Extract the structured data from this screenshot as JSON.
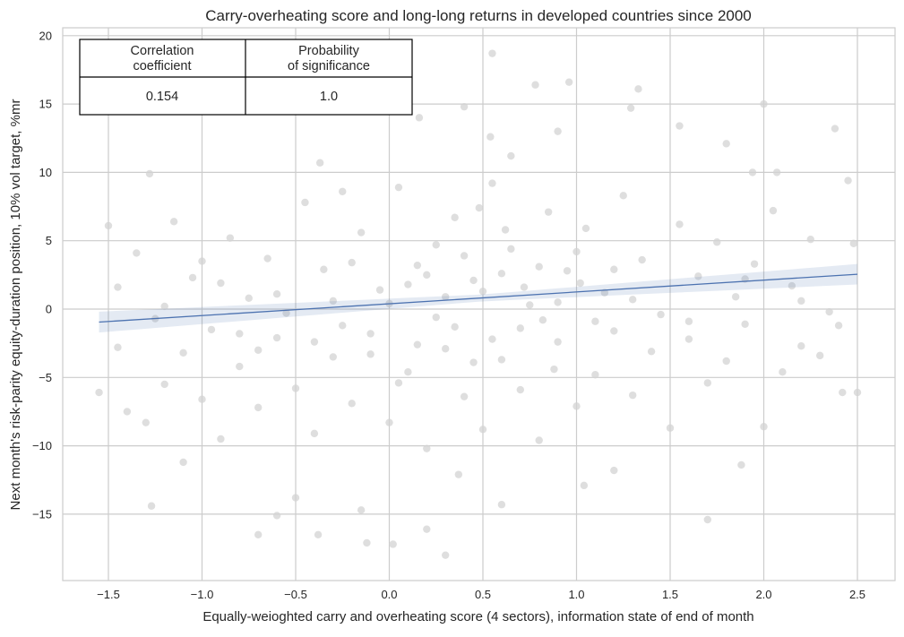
{
  "chart_data": {
    "type": "scatter",
    "title": "Carry-overheating score and long-long returns in developed countries since 2000",
    "xlabel": "Equally-weioghted carry and overheating score (4 sectors), information state of end of month",
    "ylabel": "Next month's risk-parity equity-duration position, 10% vol target, %mr",
    "xlim": [
      -1.72,
      2.72
    ],
    "ylim": [
      -19.8,
      20.6
    ],
    "xticks": [
      -1.5,
      -1.0,
      -0.5,
      0.0,
      0.5,
      1.0,
      1.5,
      2.0,
      2.5
    ],
    "xtick_labels": [
      "−1.5",
      "−1.0",
      "−0.5",
      "0.0",
      "0.5",
      "1.0",
      "1.5",
      "2.0",
      "2.5"
    ],
    "yticks": [
      -15,
      -10,
      -5,
      0,
      5,
      10,
      15,
      20
    ],
    "ytick_labels": [
      "−15",
      "−10",
      "−5",
      "0",
      "5",
      "10",
      "15",
      "20"
    ],
    "grid": true,
    "point_color": "#d3d3d3",
    "line_color": "#4c72b0",
    "regression": {
      "x": [
        -1.55,
        2.5
      ],
      "y": [
        -0.95,
        2.55
      ]
    },
    "table": {
      "headers": [
        "Correlation\ncoefficient",
        "Probability\nof significance"
      ],
      "values": [
        "0.154",
        "1.0"
      ]
    },
    "points": [
      [
        0.55,
        18.7
      ],
      [
        0.78,
        16.4
      ],
      [
        0.96,
        16.6
      ],
      [
        1.33,
        16.1
      ],
      [
        2.0,
        15.0
      ],
      [
        2.38,
        13.2
      ],
      [
        0.16,
        14.0
      ],
      [
        0.9,
        13.0
      ],
      [
        1.55,
        13.4
      ],
      [
        1.8,
        12.1
      ],
      [
        1.94,
        10.0
      ],
      [
        2.07,
        10.0
      ],
      [
        2.45,
        9.4
      ],
      [
        -0.37,
        10.7
      ],
      [
        -1.28,
        9.9
      ],
      [
        -1.5,
        6.1
      ],
      [
        0.4,
        14.8
      ],
      [
        0.54,
        12.6
      ],
      [
        1.29,
        14.7
      ],
      [
        0.65,
        11.2
      ],
      [
        0.3,
        -18.0
      ],
      [
        0.02,
        -17.2
      ],
      [
        -0.12,
        -17.1
      ],
      [
        0.2,
        -16.1
      ],
      [
        -0.7,
        -16.5
      ],
      [
        -1.27,
        -14.4
      ],
      [
        1.7,
        -15.4
      ],
      [
        -0.38,
        -16.5
      ],
      [
        1.88,
        -11.4
      ],
      [
        -1.55,
        -6.1
      ],
      [
        2.5,
        -6.1
      ],
      [
        2.42,
        -6.1
      ],
      [
        -0.6,
        -15.1
      ],
      [
        -0.15,
        -14.7
      ],
      [
        0.6,
        -14.3
      ],
      [
        1.04,
        -12.9
      ],
      [
        -0.5,
        -13.8
      ],
      [
        -1.1,
        -11.2
      ],
      [
        0.37,
        -12.1
      ],
      [
        1.2,
        -11.8
      ],
      [
        -1.45,
        -2.8
      ],
      [
        -1.4,
        -7.5
      ],
      [
        -1.3,
        -8.3
      ],
      [
        -1.2,
        -5.5
      ],
      [
        -1.1,
        -3.2
      ],
      [
        -1.0,
        -6.6
      ],
      [
        -0.9,
        -9.5
      ],
      [
        -0.8,
        -4.2
      ],
      [
        -0.7,
        -7.2
      ],
      [
        -0.6,
        -2.1
      ],
      [
        -0.5,
        -5.8
      ],
      [
        -0.4,
        -9.1
      ],
      [
        -0.3,
        -3.5
      ],
      [
        -0.2,
        -6.9
      ],
      [
        -0.1,
        -1.8
      ],
      [
        0.0,
        -8.3
      ],
      [
        0.1,
        -4.6
      ],
      [
        0.2,
        -10.2
      ],
      [
        0.3,
        -2.9
      ],
      [
        0.4,
        -6.4
      ],
      [
        0.5,
        -8.8
      ],
      [
        0.6,
        -3.7
      ],
      [
        0.7,
        -5.9
      ],
      [
        0.8,
        -9.6
      ],
      [
        0.9,
        -2.4
      ],
      [
        1.0,
        -7.1
      ],
      [
        1.1,
        -4.8
      ],
      [
        1.2,
        -1.6
      ],
      [
        1.3,
        -6.3
      ],
      [
        1.4,
        -3.1
      ],
      [
        1.5,
        -8.7
      ],
      [
        1.6,
        -2.2
      ],
      [
        1.7,
        -5.4
      ],
      [
        1.8,
        -3.8
      ],
      [
        1.9,
        -1.1
      ],
      [
        2.0,
        -8.6
      ],
      [
        2.1,
        -4.6
      ],
      [
        2.2,
        -2.7
      ],
      [
        2.3,
        -3.4
      ],
      [
        2.4,
        -1.2
      ],
      [
        -1.45,
        1.6
      ],
      [
        -1.35,
        4.1
      ],
      [
        -1.25,
        -0.7
      ],
      [
        -1.15,
        6.4
      ],
      [
        -1.05,
        2.3
      ],
      [
        -0.95,
        -1.5
      ],
      [
        -0.85,
        5.2
      ],
      [
        -0.75,
        0.8
      ],
      [
        -0.65,
        3.7
      ],
      [
        -0.55,
        -0.3
      ],
      [
        -0.45,
        7.8
      ],
      [
        -0.35,
        2.9
      ],
      [
        -0.25,
        -1.2
      ],
      [
        -0.15,
        5.6
      ],
      [
        -0.05,
        1.4
      ],
      [
        0.05,
        8.9
      ],
      [
        0.15,
        3.2
      ],
      [
        0.25,
        -0.6
      ],
      [
        0.35,
        6.7
      ],
      [
        0.45,
        2.1
      ],
      [
        0.55,
        9.2
      ],
      [
        0.65,
        4.4
      ],
      [
        0.75,
        0.3
      ],
      [
        0.85,
        7.1
      ],
      [
        0.95,
        2.8
      ],
      [
        1.05,
        5.9
      ],
      [
        1.15,
        1.2
      ],
      [
        1.25,
        8.3
      ],
      [
        1.35,
        3.6
      ],
      [
        1.45,
        -0.4
      ],
      [
        1.55,
        6.2
      ],
      [
        1.65,
        2.4
      ],
      [
        1.75,
        4.9
      ],
      [
        1.85,
        0.9
      ],
      [
        1.95,
        3.3
      ],
      [
        2.05,
        7.2
      ],
      [
        2.15,
        1.7
      ],
      [
        2.25,
        5.1
      ],
      [
        2.35,
        -0.2
      ],
      [
        2.48,
        4.8
      ],
      [
        -1.2,
        0.2
      ],
      [
        -0.9,
        1.9
      ],
      [
        -0.6,
        1.1
      ],
      [
        -0.3,
        0.6
      ],
      [
        0.0,
        0.4
      ],
      [
        0.1,
        1.8
      ],
      [
        0.2,
        2.5
      ],
      [
        0.3,
        0.9
      ],
      [
        0.4,
        3.9
      ],
      [
        0.5,
        1.3
      ],
      [
        0.6,
        2.6
      ],
      [
        0.7,
        -1.4
      ],
      [
        0.8,
        3.1
      ],
      [
        0.9,
        0.5
      ],
      [
        1.0,
        4.2
      ],
      [
        1.1,
        -0.9
      ],
      [
        1.2,
        2.9
      ],
      [
        1.3,
        0.7
      ],
      [
        -0.2,
        3.4
      ],
      [
        -0.4,
        -2.4
      ],
      [
        0.15,
        -2.6
      ],
      [
        0.35,
        -1.3
      ],
      [
        0.55,
        -2.2
      ],
      [
        0.72,
        1.6
      ],
      [
        0.45,
        -3.9
      ],
      [
        0.25,
        4.7
      ],
      [
        -0.1,
        -3.3
      ],
      [
        0.62,
        5.8
      ],
      [
        0.82,
        -0.8
      ],
      [
        1.02,
        1.9
      ],
      [
        -0.8,
        -1.8
      ],
      [
        -1.0,
        3.5
      ],
      [
        -0.7,
        -3.0
      ],
      [
        1.6,
        -0.9
      ],
      [
        1.9,
        2.2
      ],
      [
        2.2,
        0.6
      ],
      [
        -0.25,
        8.6
      ],
      [
        0.05,
        -5.4
      ],
      [
        0.48,
        7.4
      ],
      [
        0.88,
        -4.4
      ]
    ]
  }
}
